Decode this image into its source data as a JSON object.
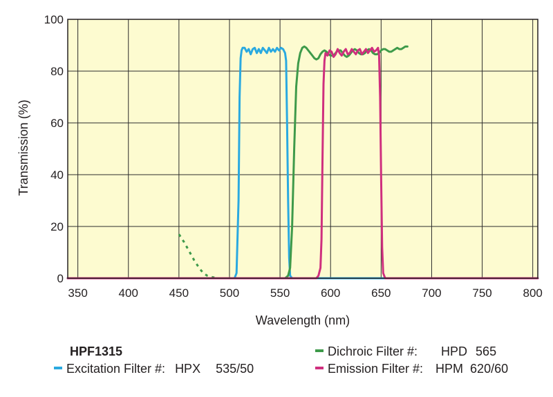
{
  "chart_data": {
    "type": "line",
    "xlabel": "Wavelength (nm)",
    "ylabel": "Transmission (%)",
    "xlim": [
      340,
      805
    ],
    "ylim": [
      0,
      100
    ],
    "x_ticks": [
      350,
      400,
      450,
      500,
      550,
      600,
      650,
      700,
      750,
      800
    ],
    "y_ticks": [
      0,
      20,
      40,
      60,
      80,
      100
    ],
    "grid": true,
    "background_color": "#fdfbd0",
    "grid_color": "#2b2b2b",
    "series": [
      {
        "name": "Excitation Filter #",
        "color": "#2aa9e0",
        "x": [
          340,
          505,
          507,
          509,
          510,
          511,
          512,
          513,
          515,
          517,
          519,
          521,
          523,
          525,
          527,
          529,
          531,
          533,
          535,
          537,
          539,
          541,
          543,
          545,
          547,
          549,
          551,
          553,
          555,
          556,
          557,
          558,
          559,
          560,
          562,
          805
        ],
        "y": [
          0,
          0,
          2,
          30,
          70,
          85,
          88,
          89,
          89,
          87.5,
          88.5,
          86.5,
          88.5,
          89,
          87,
          88.5,
          87,
          89,
          88,
          87,
          89,
          87.5,
          88.5,
          87.5,
          89,
          88,
          89,
          88.5,
          87,
          84,
          60,
          30,
          8,
          1,
          0,
          0
        ]
      },
      {
        "name": "Dichroic Filter #",
        "color": "#3e9a4a",
        "x": [
          340,
          555,
          558,
          560,
          562,
          564,
          566,
          568,
          570,
          572,
          574,
          576,
          578,
          580,
          582,
          584,
          586,
          588,
          590,
          592,
          594,
          596,
          598,
          600,
          602,
          604,
          606,
          608,
          610,
          612,
          614,
          616,
          618,
          620,
          622,
          624,
          626,
          628,
          630,
          632,
          634,
          636,
          638,
          640,
          642,
          644,
          646,
          648,
          650,
          652,
          654,
          656,
          658,
          660,
          662,
          664,
          666,
          668,
          670,
          672,
          674,
          676
        ],
        "y": [
          0,
          0,
          1,
          4,
          20,
          50,
          74,
          83,
          87,
          89,
          89.5,
          89,
          88,
          87,
          86,
          85,
          84.5,
          85,
          86.5,
          87.5,
          88,
          87.5,
          86.5,
          86,
          86,
          86.5,
          87.5,
          88,
          88,
          87,
          86,
          85.5,
          86,
          87,
          88,
          88.5,
          88,
          87,
          86.5,
          86.5,
          87,
          88,
          88.5,
          88,
          87,
          86.5,
          86.5,
          87,
          88,
          88.5,
          88.5,
          88,
          87.5,
          87.5,
          88,
          88.5,
          89,
          88.5,
          88.5,
          89,
          89.5,
          89.5
        ]
      },
      {
        "name": "Dichroic Filter #, blocking region",
        "color": "#3e9a4a",
        "dashed": true,
        "x": [
          450,
          455,
          460,
          465,
          470,
          474,
          478,
          482,
          486
        ],
        "y": [
          17,
          14,
          10.5,
          7,
          4,
          2,
          1,
          0.5,
          0.2
        ]
      },
      {
        "name": "Emission Filter #",
        "color": "#cf2f7e",
        "x": [
          340,
          586,
          588,
          590,
          591,
          592,
          593,
          594,
          595,
          597,
          599,
          601,
          603,
          605,
          607,
          609,
          611,
          613,
          615,
          617,
          619,
          621,
          623,
          625,
          627,
          629,
          631,
          633,
          635,
          637,
          639,
          641,
          643,
          645,
          647,
          648,
          649,
          650,
          651,
          652,
          654,
          805
        ],
        "y": [
          0,
          0,
          1,
          4,
          15,
          45,
          75,
          84,
          87,
          86,
          88,
          87.5,
          85.5,
          86.5,
          88.5,
          87,
          86,
          87.5,
          88.5,
          86.5,
          87,
          88.5,
          87.5,
          86.5,
          88,
          88.5,
          86.5,
          87.5,
          88.5,
          87,
          88,
          89,
          87.5,
          88,
          89,
          86,
          70,
          40,
          12,
          2,
          0,
          0
        ]
      }
    ]
  },
  "legend": {
    "title": "HPF1315",
    "excitation": {
      "label": "Excitation Filter #:",
      "prefix": "HPX",
      "value": "535/50",
      "color": "#2aa9e0"
    },
    "dichroic": {
      "label": "Dichroic Filter #:",
      "prefix": "HPD",
      "value": "565",
      "color": "#3e9a4a"
    },
    "emission": {
      "label": "Emission Filter #:",
      "prefix": "HPM",
      "value": "620/60",
      "color": "#cf2f7e"
    }
  }
}
